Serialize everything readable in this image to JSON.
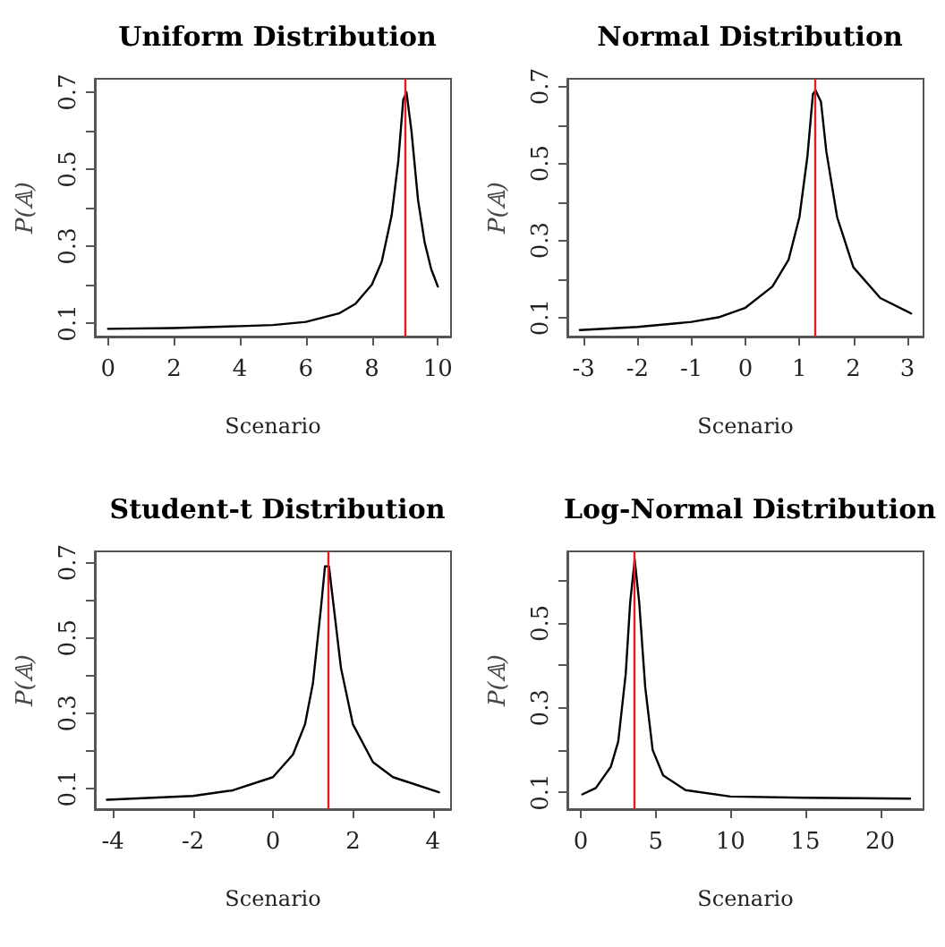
{
  "chart_data": [
    {
      "type": "line",
      "title": "Uniform Distribution",
      "xlabel": "Scenario",
      "ylabel": "P(𝔸)",
      "marker": "none",
      "line_style": "solid",
      "series": [
        {
          "color": "#000000",
          "x": [
            0,
            2,
            4,
            5,
            6,
            7,
            7.5,
            8,
            8.3,
            8.6,
            8.8,
            8.95,
            9.05,
            9.2,
            9.4,
            9.6,
            9.8,
            10
          ],
          "values": [
            0.085,
            0.087,
            0.092,
            0.095,
            0.103,
            0.125,
            0.15,
            0.2,
            0.26,
            0.38,
            0.52,
            0.68,
            0.7,
            0.6,
            0.42,
            0.31,
            0.24,
            0.195
          ]
        }
      ],
      "xlim": [
        -0.4,
        10.4
      ],
      "xticks": [
        0,
        2,
        4,
        6,
        8,
        10
      ],
      "ylim": [
        0.065,
        0.735
      ],
      "yticks": [
        0.1,
        {
          "value": 0.2,
          "label": null
        },
        0.3,
        {
          "value": 0.4,
          "label": null
        },
        0.5,
        {
          "value": 0.6,
          "label": null
        },
        0.7
      ],
      "ref_lines": [
        {
          "axis": "x",
          "value": 9.0,
          "color": "#e41a1c"
        }
      ]
    },
    {
      "type": "line",
      "title": "Normal Distribution",
      "xlabel": "Scenario",
      "ylabel": "P(𝔸)",
      "marker": "none",
      "line_style": "solid",
      "series": [
        {
          "color": "#000000",
          "x": [
            -3.07,
            -2,
            -1,
            -0.5,
            0,
            0.5,
            0.8,
            1.0,
            1.15,
            1.25,
            1.3,
            1.4,
            1.5,
            1.7,
            2,
            2.5,
            3.07
          ],
          "values": [
            0.067,
            0.075,
            0.088,
            0.1,
            0.125,
            0.18,
            0.25,
            0.36,
            0.52,
            0.68,
            0.69,
            0.66,
            0.53,
            0.36,
            0.23,
            0.15,
            0.11
          ]
        }
      ],
      "xlim": [
        -3.3,
        3.3
      ],
      "xticks": [
        -3,
        -2,
        -1,
        0,
        1,
        2,
        3
      ],
      "ylim": [
        0.05,
        0.72
      ],
      "yticks": [
        0.1,
        {
          "value": 0.2,
          "label": null
        },
        0.3,
        {
          "value": 0.4,
          "label": null
        },
        0.5,
        {
          "value": 0.6,
          "label": null
        },
        0.7
      ],
      "ref_lines": [
        {
          "axis": "x",
          "value": 1.28,
          "color": "#e41a1c"
        }
      ]
    },
    {
      "type": "line",
      "title": "Student-t Distribution",
      "xlabel": "Scenario",
      "ylabel": "P(𝔸)",
      "marker": "none",
      "line_style": "solid",
      "series": [
        {
          "color": "#000000",
          "x": [
            -4.15,
            -2,
            -1,
            0,
            0.5,
            0.8,
            1.0,
            1.2,
            1.3,
            1.4,
            1.5,
            1.7,
            2,
            2.5,
            3,
            4.15
          ],
          "values": [
            0.07,
            0.08,
            0.095,
            0.13,
            0.19,
            0.27,
            0.38,
            0.58,
            0.69,
            0.69,
            0.6,
            0.42,
            0.27,
            0.17,
            0.13,
            0.09
          ]
        }
      ],
      "xlim": [
        -4.45,
        4.45
      ],
      "xticks": [
        -4,
        -2,
        0,
        2,
        4
      ],
      "ylim": [
        0.045,
        0.73
      ],
      "yticks": [
        0.1,
        {
          "value": 0.2,
          "label": null
        },
        0.3,
        {
          "value": 0.4,
          "label": null
        },
        0.5,
        {
          "value": 0.6,
          "label": null
        },
        0.7
      ],
      "ref_lines": [
        {
          "axis": "x",
          "value": 1.37,
          "color": "#e41a1c"
        }
      ]
    },
    {
      "type": "line",
      "title": "Log-Normal Distribution",
      "xlabel": "Scenario",
      "ylabel": "P(𝔸)",
      "marker": "none",
      "line_style": "solid",
      "series": [
        {
          "color": "#000000",
          "x": [
            0.1,
            1,
            2,
            2.5,
            3,
            3.3,
            3.6,
            3.9,
            4.3,
            4.8,
            5.5,
            7,
            10,
            15,
            22
          ],
          "values": [
            0.095,
            0.11,
            0.16,
            0.22,
            0.38,
            0.55,
            0.65,
            0.55,
            0.35,
            0.2,
            0.14,
            0.105,
            0.09,
            0.087,
            0.085
          ]
        }
      ],
      "xlim": [
        -0.9,
        22.9
      ],
      "xticks": [
        0,
        5,
        10,
        15,
        20
      ],
      "ylim": [
        0.06,
        0.67
      ],
      "yticks": [
        0.1,
        {
          "value": 0.2,
          "label": null
        },
        0.3,
        {
          "value": 0.4,
          "label": null
        },
        0.5,
        {
          "value": 0.6,
          "label": null
        }
      ],
      "ref_lines": [
        {
          "axis": "x",
          "value": 3.6,
          "color": "#e41a1c"
        }
      ]
    }
  ]
}
